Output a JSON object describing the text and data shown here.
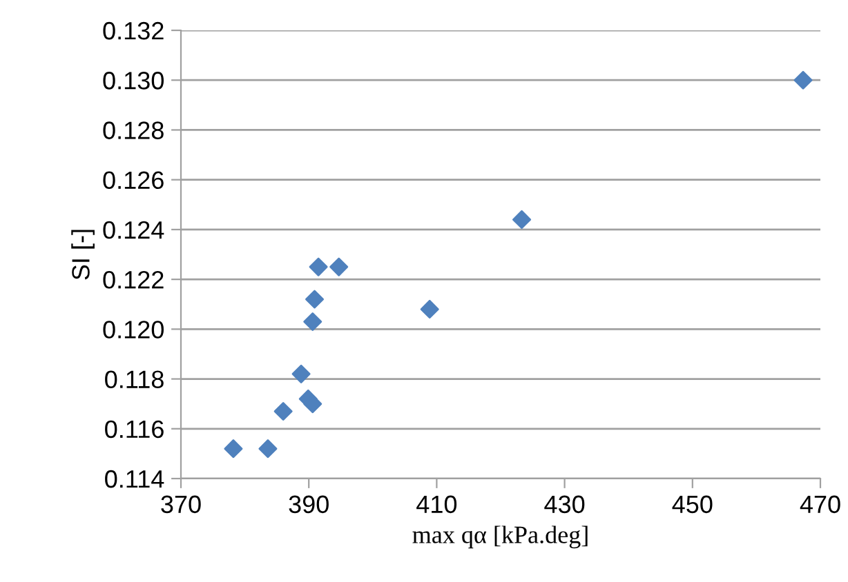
{
  "chart_data": {
    "type": "scatter",
    "xlabel": "max qα [kPa.deg]",
    "ylabel": "SI [-]",
    "x": [
      378.2,
      383.6,
      386.0,
      388.8,
      389.9,
      390.6,
      390.6,
      390.9,
      391.5,
      394.7,
      408.9,
      423.3,
      467.3
    ],
    "series": [
      {
        "color": "#4f81bd",
        "values": [
          0.1152,
          0.1152,
          0.1167,
          0.1182,
          0.1172,
          0.117,
          0.1203,
          0.1212,
          0.1225,
          0.1225,
          0.1208,
          0.1244,
          0.13
        ]
      }
    ],
    "xlim": [
      370,
      470
    ],
    "xticks": [
      370,
      390,
      410,
      430,
      450,
      470
    ],
    "ylim": [
      0.114,
      0.132
    ],
    "yticks": [
      {
        "value": 0.114,
        "label": "0.114"
      },
      {
        "value": 0.116,
        "label": "0.116"
      },
      {
        "value": 0.118,
        "label": "0.118"
      },
      {
        "value": 0.12,
        "label": "0.120"
      },
      {
        "value": 0.122,
        "label": "0.122"
      },
      {
        "value": 0.124,
        "label": "0.124"
      },
      {
        "value": 0.126,
        "label": "0.126"
      },
      {
        "value": 0.128,
        "label": "0.128"
      },
      {
        "value": 0.13,
        "label": "0.130"
      },
      {
        "value": 0.132,
        "label": "0.132"
      }
    ],
    "grid": "y",
    "marker": "diamond",
    "legend": false
  }
}
